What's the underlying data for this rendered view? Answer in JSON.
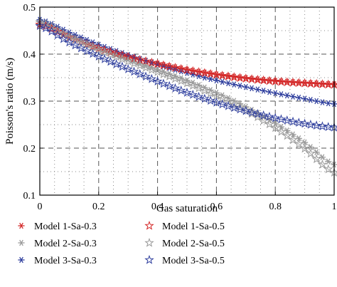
{
  "chart_data": {
    "type": "line",
    "xlabel": "Gas saturation",
    "ylabel": "Poisson's ratio (m/s)",
    "xlim": [
      0,
      1
    ],
    "ylim": [
      0.1,
      0.5
    ],
    "xticks": [
      "0",
      "0.2",
      "0.4",
      "0.6",
      "0.8",
      "1"
    ],
    "yticks": [
      "0.1",
      "0.2",
      "0.3",
      "0.4",
      "0.5"
    ],
    "grid": "dotted minor every 0.05, dashed major every 0.2 x / 0.1 y",
    "legend_position": "bottom",
    "x": [
      0,
      0.1,
      0.2,
      0.3,
      0.4,
      0.5,
      0.6,
      0.7,
      0.8,
      0.9,
      1.0
    ],
    "series": [
      {
        "name": "Model 1-Sa-0.3",
        "marker": "asterisk",
        "color": "#d42a2a",
        "values": [
          0.465,
          0.438,
          0.414,
          0.395,
          0.38,
          0.367,
          0.357,
          0.349,
          0.343,
          0.339,
          0.336
        ]
      },
      {
        "name": "Model 2-Sa-0.3",
        "marker": "asterisk",
        "color": "#9a9a9a",
        "values": [
          0.47,
          0.44,
          0.413,
          0.389,
          0.367,
          0.344,
          0.318,
          0.288,
          0.253,
          0.212,
          0.165
        ]
      },
      {
        "name": "Model 3-Sa-0.3",
        "marker": "asterisk",
        "color": "#2f3f9e",
        "values": [
          0.473,
          0.446,
          0.42,
          0.398,
          0.378,
          0.36,
          0.344,
          0.33,
          0.317,
          0.305,
          0.294
        ]
      },
      {
        "name": "Model 1-Sa-0.5",
        "marker": "star",
        "color": "#d42a2a",
        "values": [
          0.463,
          0.436,
          0.412,
          0.394,
          0.379,
          0.366,
          0.356,
          0.348,
          0.342,
          0.338,
          0.335
        ]
      },
      {
        "name": "Model 2-Sa-0.5",
        "marker": "star",
        "color": "#9a9a9a",
        "values": [
          0.468,
          0.437,
          0.409,
          0.385,
          0.362,
          0.338,
          0.311,
          0.28,
          0.243,
          0.199,
          0.148
        ]
      },
      {
        "name": "Model 3-Sa-0.5",
        "marker": "star",
        "color": "#2f3f9e",
        "values": [
          0.46,
          0.425,
          0.395,
          0.368,
          0.342,
          0.318,
          0.297,
          0.279,
          0.264,
          0.252,
          0.244
        ]
      }
    ]
  }
}
